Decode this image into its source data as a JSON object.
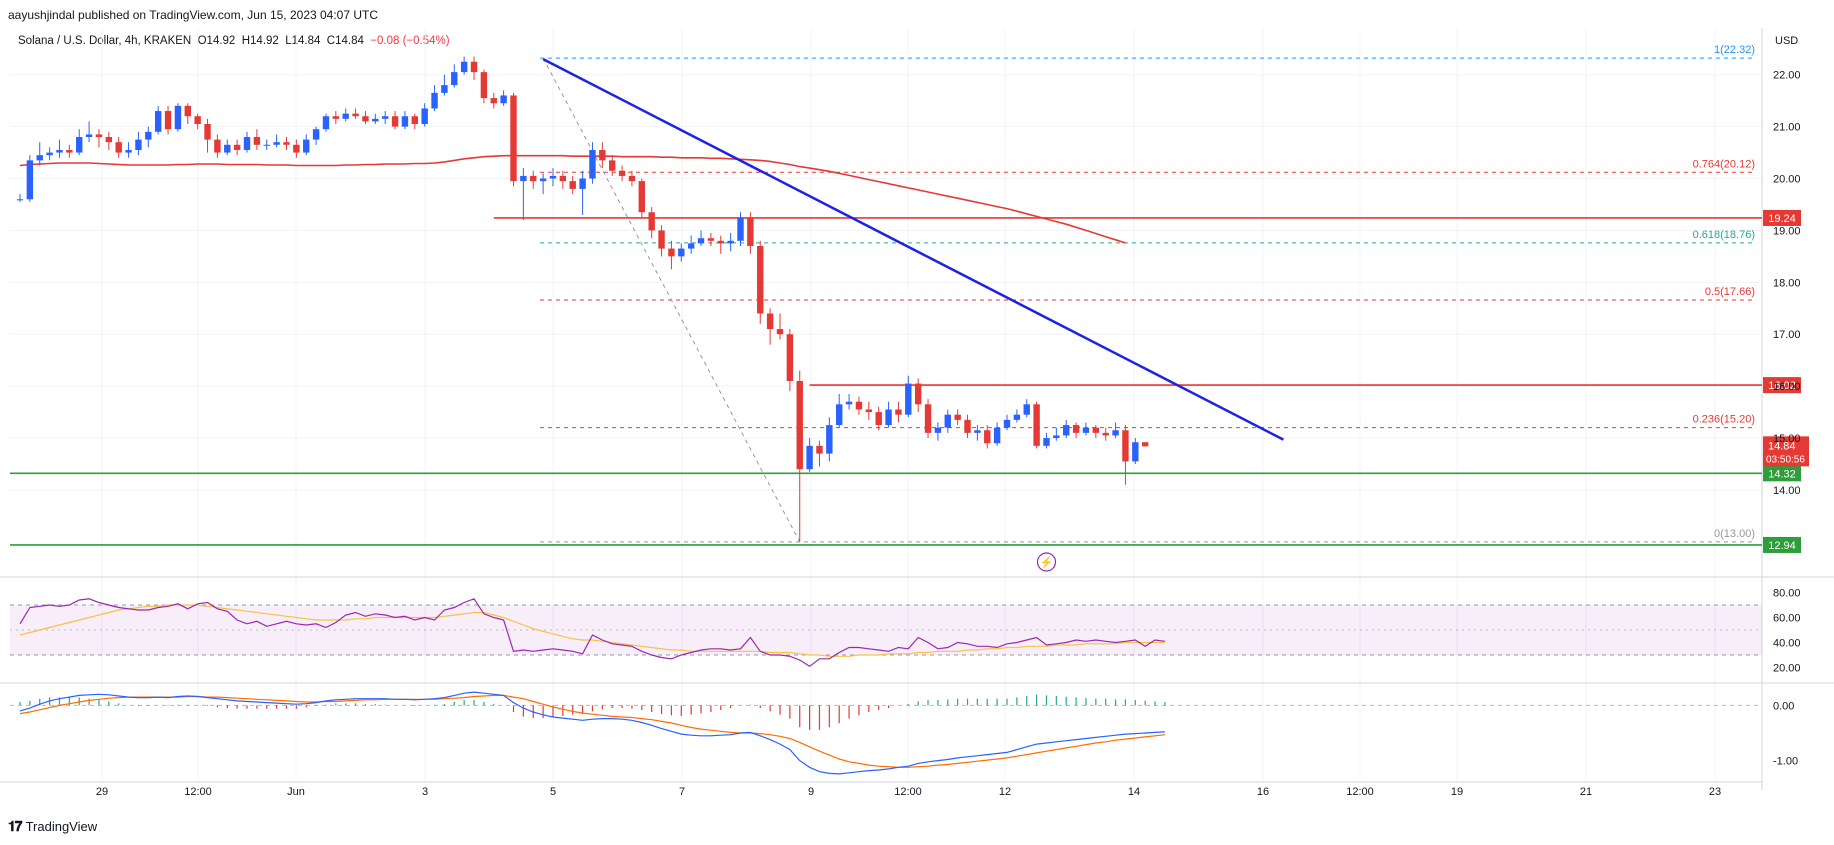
{
  "header": {
    "published": "aayushjindal published on TradingView.com, Jun 15, 2023 04:07 UTC",
    "symbol": "Solana / U.S. Dollar, 4h, KRAKEN",
    "open": "O14.92",
    "high": "H14.92",
    "low": "L14.84",
    "close": "C14.84",
    "change": "−0.08 (−0.54%)"
  },
  "footer": {
    "brand": "TradingView"
  },
  "colors": {
    "up": "#2962ff",
    "down": "#e53935",
    "trend": "#1e22e6",
    "ma": "#e53935",
    "support": "#2e9e3a",
    "resistance": "#e53935",
    "fib": "#e53935",
    "fib_teal": "#26a69a",
    "fib_blue": "#2196f3",
    "rsi": "#9c27b0",
    "rsi_ma": "#f6c343",
    "macd": "#2962ff",
    "signal": "#ff6d00"
  },
  "chart_data": {
    "type": "line",
    "title": "Solana / U.S. Dollar, 4h, KRAKEN",
    "y_axis_title": "USD",
    "ylim": [
      12.4,
      22.9
    ],
    "y_ticks": [
      "22.00",
      "21.00",
      "20.00",
      "19.00",
      "18.00",
      "17.00",
      "16.00",
      "15.00",
      "14.00"
    ],
    "x_ticks": [
      "29",
      "12:00",
      "Jun",
      "3",
      "5",
      "7",
      "9",
      "12:00",
      "12",
      "14",
      "16",
      "12:00",
      "19",
      "21",
      "23"
    ],
    "candles": [
      [
        19.6,
        19.6,
        19.7,
        19.55
      ],
      [
        19.6,
        20.35,
        20.45,
        19.55
      ],
      [
        20.35,
        20.45,
        20.7,
        20.25
      ],
      [
        20.45,
        20.5,
        20.6,
        20.35
      ],
      [
        20.5,
        20.55,
        20.75,
        20.4
      ],
      [
        20.55,
        20.5,
        20.65,
        20.4
      ],
      [
        20.5,
        20.8,
        20.95,
        20.45
      ],
      [
        20.8,
        20.85,
        21.1,
        20.7
      ],
      [
        20.85,
        20.8,
        20.95,
        20.6
      ],
      [
        20.8,
        20.7,
        20.9,
        20.55
      ],
      [
        20.7,
        20.5,
        20.8,
        20.4
      ],
      [
        20.5,
        20.55,
        20.7,
        20.4
      ],
      [
        20.55,
        20.75,
        20.9,
        20.45
      ],
      [
        20.75,
        20.9,
        21.0,
        20.6
      ],
      [
        20.9,
        21.3,
        21.4,
        20.85
      ],
      [
        21.3,
        20.95,
        21.4,
        20.85
      ],
      [
        20.95,
        21.4,
        21.45,
        20.9
      ],
      [
        21.4,
        21.2,
        21.45,
        21.05
      ],
      [
        21.2,
        21.05,
        21.25,
        20.95
      ],
      [
        21.05,
        20.75,
        21.15,
        20.5
      ],
      [
        20.75,
        20.5,
        20.85,
        20.4
      ],
      [
        20.5,
        20.65,
        20.75,
        20.45
      ],
      [
        20.65,
        20.55,
        20.75,
        20.45
      ],
      [
        20.55,
        20.8,
        20.9,
        20.5
      ],
      [
        20.8,
        20.65,
        20.95,
        20.55
      ],
      [
        20.65,
        20.65,
        20.75,
        20.55
      ],
      [
        20.65,
        20.7,
        20.85,
        20.6
      ],
      [
        20.7,
        20.65,
        20.8,
        20.55
      ],
      [
        20.65,
        20.5,
        20.75,
        20.4
      ],
      [
        20.5,
        20.75,
        20.85,
        20.45
      ],
      [
        20.75,
        20.95,
        21.0,
        20.65
      ],
      [
        20.95,
        21.2,
        21.25,
        20.9
      ],
      [
        21.2,
        21.15,
        21.3,
        21.05
      ],
      [
        21.15,
        21.25,
        21.35,
        21.1
      ],
      [
        21.25,
        21.2,
        21.35,
        21.15
      ],
      [
        21.2,
        21.1,
        21.3,
        21.05
      ],
      [
        21.1,
        21.15,
        21.25,
        21.05
      ],
      [
        21.15,
        21.2,
        21.3,
        21.05
      ],
      [
        21.2,
        21.0,
        21.3,
        20.95
      ],
      [
        21.0,
        21.2,
        21.3,
        20.95
      ],
      [
        21.2,
        21.05,
        21.25,
        20.95
      ],
      [
        21.05,
        21.35,
        21.45,
        21.0
      ],
      [
        21.35,
        21.65,
        21.8,
        21.3
      ],
      [
        21.65,
        21.8,
        22.0,
        21.6
      ],
      [
        21.8,
        22.05,
        22.2,
        21.75
      ],
      [
        22.05,
        22.25,
        22.35,
        22.0
      ],
      [
        22.25,
        22.05,
        22.35,
        21.9
      ],
      [
        22.05,
        21.55,
        22.1,
        21.45
      ],
      [
        21.55,
        21.45,
        21.65,
        21.35
      ],
      [
        21.45,
        21.6,
        21.7,
        21.4
      ],
      [
        21.6,
        19.95,
        21.65,
        19.85
      ],
      [
        19.95,
        20.05,
        20.2,
        19.2
      ],
      [
        20.05,
        19.95,
        20.15,
        19.8
      ],
      [
        19.95,
        20.0,
        20.1,
        19.7
      ],
      [
        20.0,
        20.05,
        20.2,
        19.85
      ],
      [
        20.05,
        19.95,
        20.15,
        19.8
      ],
      [
        19.95,
        19.8,
        20.05,
        19.7
      ],
      [
        19.8,
        20.0,
        20.15,
        19.3
      ],
      [
        20.0,
        20.55,
        20.7,
        19.9
      ],
      [
        20.55,
        20.35,
        20.7,
        20.2
      ],
      [
        20.35,
        20.15,
        20.45,
        20.05
      ],
      [
        20.15,
        20.05,
        20.25,
        19.95
      ],
      [
        20.05,
        19.95,
        20.15,
        19.85
      ],
      [
        19.95,
        19.35,
        20.0,
        19.25
      ],
      [
        19.35,
        19.0,
        19.45,
        18.85
      ],
      [
        19.0,
        18.65,
        19.1,
        18.5
      ],
      [
        18.65,
        18.5,
        18.8,
        18.25
      ],
      [
        18.5,
        18.65,
        18.75,
        18.4
      ],
      [
        18.65,
        18.75,
        18.9,
        18.55
      ],
      [
        18.75,
        18.85,
        19.0,
        18.7
      ],
      [
        18.85,
        18.8,
        18.95,
        18.7
      ],
      [
        18.8,
        18.75,
        18.9,
        18.55
      ],
      [
        18.75,
        18.8,
        18.95,
        18.6
      ],
      [
        18.8,
        19.25,
        19.35,
        18.7
      ],
      [
        19.25,
        18.7,
        19.35,
        18.55
      ],
      [
        18.7,
        17.4,
        18.8,
        17.2
      ],
      [
        17.4,
        17.1,
        17.5,
        16.8
      ],
      [
        17.1,
        17.0,
        17.4,
        16.9
      ],
      [
        17.0,
        16.1,
        17.1,
        15.9
      ],
      [
        16.1,
        14.4,
        16.3,
        13.0
      ],
      [
        14.4,
        14.85,
        15.0,
        14.35
      ],
      [
        14.85,
        14.7,
        14.95,
        14.45
      ],
      [
        14.7,
        15.25,
        15.4,
        14.55
      ],
      [
        15.25,
        15.65,
        15.85,
        15.2
      ],
      [
        15.65,
        15.7,
        15.85,
        15.55
      ],
      [
        15.7,
        15.55,
        15.8,
        15.45
      ],
      [
        15.55,
        15.5,
        15.7,
        15.35
      ],
      [
        15.5,
        15.25,
        15.6,
        15.15
      ],
      [
        15.25,
        15.55,
        15.7,
        15.2
      ],
      [
        15.55,
        15.45,
        15.7,
        15.3
      ],
      [
        15.45,
        16.05,
        16.2,
        15.4
      ],
      [
        16.05,
        15.65,
        16.15,
        15.5
      ],
      [
        15.65,
        15.1,
        15.75,
        15.0
      ],
      [
        15.1,
        15.2,
        15.3,
        14.95
      ],
      [
        15.2,
        15.45,
        15.55,
        15.1
      ],
      [
        15.45,
        15.35,
        15.55,
        15.25
      ],
      [
        15.35,
        15.1,
        15.45,
        15.0
      ],
      [
        15.1,
        15.15,
        15.25,
        14.95
      ],
      [
        15.15,
        14.9,
        15.25,
        14.8
      ],
      [
        14.9,
        15.2,
        15.3,
        14.85
      ],
      [
        15.2,
        15.35,
        15.45,
        15.15
      ],
      [
        15.35,
        15.45,
        15.55,
        15.3
      ],
      [
        15.45,
        15.65,
        15.75,
        15.4
      ],
      [
        15.65,
        14.85,
        15.7,
        14.8
      ],
      [
        14.85,
        15.0,
        15.1,
        14.8
      ],
      [
        15.0,
        15.05,
        15.2,
        14.95
      ],
      [
        15.05,
        15.25,
        15.35,
        15.0
      ],
      [
        15.25,
        15.1,
        15.3,
        15.0
      ],
      [
        15.1,
        15.2,
        15.3,
        15.05
      ],
      [
        15.2,
        15.1,
        15.25,
        15.0
      ],
      [
        15.1,
        15.05,
        15.2,
        14.95
      ],
      [
        15.05,
        15.15,
        15.3,
        15.0
      ],
      [
        15.15,
        14.55,
        15.25,
        14.1
      ],
      [
        14.55,
        14.92,
        15.0,
        14.5
      ],
      [
        14.92,
        14.84,
        14.92,
        14.84
      ]
    ],
    "ma": [
      20.25,
      20.27,
      20.28,
      20.29,
      20.3,
      20.3,
      20.3,
      20.3,
      20.29,
      20.28,
      20.27,
      20.26,
      20.26,
      20.26,
      20.26,
      20.26,
      20.27,
      20.27,
      20.28,
      20.28,
      20.28,
      20.27,
      20.27,
      20.27,
      20.27,
      20.26,
      20.26,
      20.26,
      20.25,
      20.25,
      20.25,
      20.25,
      20.25,
      20.26,
      20.26,
      20.27,
      20.27,
      20.28,
      20.28,
      20.28,
      20.29,
      20.29,
      20.3,
      20.32,
      20.35,
      20.38,
      20.4,
      20.42,
      20.43,
      20.44,
      20.44,
      20.44,
      20.44,
      20.44,
      20.44,
      20.44,
      20.43,
      20.43,
      20.43,
      20.43,
      20.43,
      20.42,
      20.42,
      20.42,
      20.42,
      20.41,
      20.41,
      20.4,
      20.4,
      20.4,
      20.39,
      20.39,
      20.38,
      20.37,
      20.36,
      20.35,
      20.33,
      20.3,
      20.27,
      20.23,
      20.2,
      20.17,
      20.14,
      20.1,
      20.06,
      20.02,
      19.98,
      19.94,
      19.9,
      19.86,
      19.82,
      19.78,
      19.74,
      19.7,
      19.66,
      19.62,
      19.58,
      19.54,
      19.5,
      19.46,
      19.42,
      19.37,
      19.32,
      19.27,
      19.22,
      19.17,
      19.12,
      19.06,
      19.0,
      18.94,
      18.88,
      18.82,
      18.76
    ],
    "trendline": {
      "from": {
        "i": 53,
        "price": 22.3
      },
      "to": {
        "i": 128,
        "price": 14.97
      }
    },
    "horizontal_levels": [
      {
        "price": 19.24,
        "label": "19.24",
        "kind": "resistance",
        "from_i": 48
      },
      {
        "price": 16.02,
        "label": "16.02",
        "kind": "resistance",
        "from_i": 80
      },
      {
        "price": 14.32,
        "label": "14.32",
        "kind": "support",
        "from_i": 0
      },
      {
        "price": 12.94,
        "label": "12.94",
        "kind": "support",
        "from_i": 0
      }
    ],
    "fib_levels": [
      {
        "ratio": "1",
        "price": 22.32,
        "label": "1(22.32)",
        "color_key": "fib_blue"
      },
      {
        "ratio": "0.764",
        "price": 20.12,
        "label": "0.764(20.12)",
        "color_key": "fib"
      },
      {
        "ratio": "0.618",
        "price": 18.76,
        "label": "0.618(18.76)",
        "color_key": "fib_teal"
      },
      {
        "ratio": "0.5",
        "price": 17.66,
        "label": "0.5(17.66)",
        "color_key": "fib"
      },
      {
        "ratio": "0.236",
        "price": 15.2,
        "label": "0.236(15.20)",
        "color_key": "fib"
      },
      {
        "ratio": "0",
        "price": 13.0,
        "label": "0(13.00)",
        "color_key": "fib_gray"
      }
    ],
    "last_price": {
      "value": "14.84",
      "countdown": "03:50:56"
    },
    "rsi": {
      "ylim": [
        10,
        90
      ],
      "ticks": [
        "80.00",
        "60.00",
        "40.00",
        "20.00"
      ],
      "band": [
        30,
        70
      ],
      "values": [
        55,
        68,
        69,
        70,
        69,
        70,
        74,
        75,
        72,
        70,
        68,
        67,
        66,
        66,
        68,
        69,
        71,
        67,
        71,
        72,
        67,
        65,
        58,
        55,
        57,
        53,
        55,
        57,
        55,
        54,
        55,
        52,
        56,
        62,
        64,
        61,
        63,
        62,
        60,
        61,
        58,
        60,
        58,
        66,
        68,
        72,
        75,
        63,
        60,
        58,
        33,
        34,
        33,
        34,
        35,
        34,
        33,
        31,
        46,
        42,
        39,
        38,
        37,
        33,
        30,
        28,
        27,
        30,
        32,
        34,
        35,
        35,
        34,
        35,
        44,
        33,
        30,
        30,
        29,
        26,
        21,
        27,
        27,
        32,
        36,
        36,
        35,
        34,
        33,
        36,
        35,
        44,
        40,
        35,
        36,
        40,
        39,
        37,
        37,
        36,
        39,
        40,
        42,
        44,
        38,
        39,
        40,
        42,
        41,
        42,
        41,
        40,
        41,
        42,
        37,
        42,
        41
      ],
      "ma": [
        46,
        48,
        50,
        52,
        54,
        56,
        58,
        60,
        62,
        64,
        66,
        67,
        68,
        69,
        69,
        70,
        70,
        70,
        70,
        69,
        68,
        67,
        66,
        65,
        64,
        63,
        62,
        61,
        60,
        59,
        58,
        58,
        58,
        58,
        59,
        59,
        60,
        60,
        60,
        60,
        60,
        60,
        60,
        61,
        62,
        63,
        64,
        64,
        62,
        60,
        57,
        54,
        51,
        49,
        47,
        45,
        43,
        42,
        42,
        41,
        40,
        39,
        38,
        37,
        36,
        35,
        34,
        34,
        33,
        33,
        33,
        33,
        33,
        33,
        33,
        33,
        32,
        32,
        32,
        31,
        30,
        30,
        29,
        29,
        29,
        30,
        30,
        30,
        31,
        31,
        31,
        32,
        32,
        33,
        33,
        33,
        34,
        34,
        35,
        35,
        36,
        36,
        37,
        37,
        37,
        38,
        38,
        38,
        39,
        39,
        39,
        39,
        40,
        40,
        40,
        40,
        40
      ]
    },
    "macd": {
      "ylim": [
        -1.35,
        0.35
      ],
      "ticks": [
        "0.00",
        "-1.00"
      ],
      "values": [
        -0.1,
        -0.05,
        0.02,
        0.08,
        0.12,
        0.15,
        0.18,
        0.19,
        0.2,
        0.19,
        0.17,
        0.15,
        0.14,
        0.14,
        0.15,
        0.14,
        0.16,
        0.17,
        0.16,
        0.14,
        0.12,
        0.1,
        0.08,
        0.07,
        0.06,
        0.05,
        0.04,
        0.03,
        0.02,
        0.03,
        0.05,
        0.08,
        0.1,
        0.11,
        0.12,
        0.12,
        0.12,
        0.12,
        0.11,
        0.11,
        0.1,
        0.11,
        0.12,
        0.14,
        0.18,
        0.22,
        0.24,
        0.22,
        0.2,
        0.18,
        0.05,
        -0.05,
        -0.12,
        -0.17,
        -0.21,
        -0.23,
        -0.25,
        -0.27,
        -0.25,
        -0.24,
        -0.24,
        -0.25,
        -0.27,
        -0.31,
        -0.36,
        -0.42,
        -0.47,
        -0.52,
        -0.54,
        -0.55,
        -0.55,
        -0.54,
        -0.53,
        -0.5,
        -0.49,
        -0.55,
        -0.62,
        -0.7,
        -0.8,
        -1.0,
        -1.12,
        -1.2,
        -1.23,
        -1.24,
        -1.22,
        -1.2,
        -1.18,
        -1.17,
        -1.15,
        -1.12,
        -1.1,
        -1.05,
        -1.02,
        -1.0,
        -0.98,
        -0.95,
        -0.93,
        -0.91,
        -0.89,
        -0.87,
        -0.85,
        -0.8,
        -0.75,
        -0.7,
        -0.68,
        -0.66,
        -0.64,
        -0.62,
        -0.6,
        -0.58,
        -0.56,
        -0.54,
        -0.52,
        -0.51,
        -0.5,
        -0.49,
        -0.48
      ],
      "signal": [
        -0.15,
        -0.12,
        -0.08,
        -0.04,
        0.0,
        0.03,
        0.06,
        0.09,
        0.11,
        0.13,
        0.14,
        0.15,
        0.15,
        0.15,
        0.15,
        0.15,
        0.15,
        0.16,
        0.16,
        0.15,
        0.15,
        0.14,
        0.13,
        0.12,
        0.11,
        0.1,
        0.09,
        0.08,
        0.07,
        0.06,
        0.06,
        0.07,
        0.07,
        0.08,
        0.09,
        0.1,
        0.1,
        0.11,
        0.11,
        0.11,
        0.11,
        0.11,
        0.11,
        0.12,
        0.13,
        0.14,
        0.16,
        0.17,
        0.18,
        0.18,
        0.15,
        0.12,
        0.07,
        0.02,
        -0.03,
        -0.07,
        -0.11,
        -0.14,
        -0.16,
        -0.18,
        -0.2,
        -0.21,
        -0.22,
        -0.24,
        -0.26,
        -0.29,
        -0.32,
        -0.36,
        -0.4,
        -0.43,
        -0.45,
        -0.47,
        -0.49,
        -0.5,
        -0.5,
        -0.51,
        -0.53,
        -0.56,
        -0.6,
        -0.67,
        -0.75,
        -0.83,
        -0.9,
        -0.97,
        -1.02,
        -1.05,
        -1.08,
        -1.1,
        -1.11,
        -1.12,
        -1.12,
        -1.11,
        -1.1,
        -1.08,
        -1.07,
        -1.05,
        -1.03,
        -1.01,
        -0.99,
        -0.97,
        -0.95,
        -0.92,
        -0.89,
        -0.86,
        -0.83,
        -0.8,
        -0.77,
        -0.74,
        -0.71,
        -0.68,
        -0.66,
        -0.63,
        -0.61,
        -0.59,
        -0.57,
        -0.55,
        -0.53
      ]
    },
    "lightning_marker": "⚡"
  }
}
